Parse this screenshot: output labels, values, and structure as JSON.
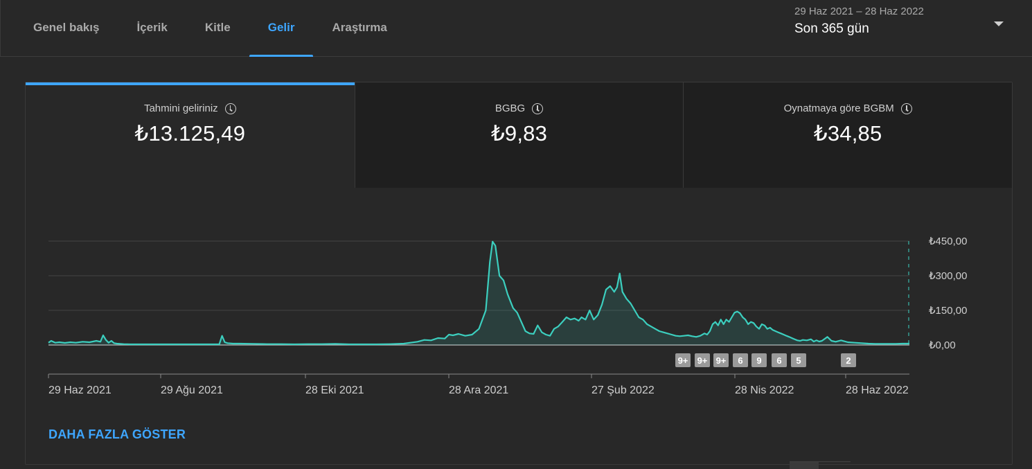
{
  "tabs": [
    {
      "label": "Genel bakış",
      "active": false
    },
    {
      "label": "İçerik",
      "active": false
    },
    {
      "label": "Kitle",
      "active": false
    },
    {
      "label": "Gelir",
      "active": true
    },
    {
      "label": "Araştırma",
      "active": false
    }
  ],
  "date_range": {
    "dates": "29 Haz 2021 – 28 Haz 2022",
    "label": "Son 365 gün"
  },
  "metrics": [
    {
      "label": "Tahmini geliriniz",
      "value": "₺13.125,49",
      "active": true
    },
    {
      "label": "BGBG",
      "value": "₺9,83",
      "active": false
    },
    {
      "label": "Oynatmaya göre BGBM",
      "value": "₺34,85",
      "active": false
    }
  ],
  "show_more_label": "DAHA FAZLA GÖSTER",
  "colors": {
    "accent": "#3ea6ff",
    "line": "#3ccfbf",
    "background": "#282828"
  },
  "chart_data": {
    "type": "area",
    "x_start": "2021-06-29",
    "x_end": "2022-06-28",
    "x_tick_labels": [
      "29 Haz 2021",
      "29 Ağu 2021",
      "28 Eki 2021",
      "28 Ara 2021",
      "27 Şub 2022",
      "28 Nis 2022",
      "28 Haz 2022"
    ],
    "y_tick_labels": [
      "₺0,00",
      "₺150,00",
      "₺300,00",
      "₺450,00"
    ],
    "ylim": [
      0,
      450
    ],
    "series": [
      {
        "values": [
          [
            0,
            10
          ],
          [
            2,
            18
          ],
          [
            5,
            10
          ],
          [
            8,
            12
          ],
          [
            12,
            9
          ],
          [
            16,
            12
          ],
          [
            20,
            10
          ],
          [
            25,
            14
          ],
          [
            30,
            12
          ],
          [
            35,
            18
          ],
          [
            38,
            14
          ],
          [
            40,
            42
          ],
          [
            42,
            22
          ],
          [
            44,
            10
          ],
          [
            46,
            18
          ],
          [
            48,
            8
          ],
          [
            50,
            6
          ],
          [
            55,
            4
          ],
          [
            60,
            3
          ],
          [
            70,
            3
          ],
          [
            80,
            3
          ],
          [
            90,
            3
          ],
          [
            100,
            3
          ],
          [
            110,
            3
          ],
          [
            120,
            3
          ],
          [
            125,
            3
          ],
          [
            127,
            40
          ],
          [
            129,
            12
          ],
          [
            131,
            8
          ],
          [
            135,
            6
          ],
          [
            140,
            6
          ],
          [
            150,
            5
          ],
          [
            160,
            4
          ],
          [
            170,
            4
          ],
          [
            180,
            3
          ],
          [
            190,
            4
          ],
          [
            200,
            4
          ],
          [
            210,
            5
          ],
          [
            220,
            3
          ],
          [
            230,
            3
          ],
          [
            240,
            3
          ],
          [
            250,
            4
          ],
          [
            260,
            6
          ],
          [
            270,
            14
          ],
          [
            275,
            22
          ],
          [
            280,
            20
          ],
          [
            285,
            30
          ],
          [
            290,
            28
          ],
          [
            293,
            45
          ],
          [
            296,
            42
          ],
          [
            300,
            48
          ],
          [
            305,
            40
          ],
          [
            310,
            45
          ],
          [
            315,
            70
          ],
          [
            320,
            150
          ],
          [
            323,
            360
          ],
          [
            325,
            448
          ],
          [
            327,
            430
          ],
          [
            330,
            300
          ],
          [
            333,
            280
          ],
          [
            336,
            220
          ],
          [
            340,
            160
          ],
          [
            343,
            140
          ],
          [
            346,
            100
          ],
          [
            349,
            60
          ],
          [
            352,
            50
          ],
          [
            355,
            48
          ],
          [
            358,
            85
          ],
          [
            361,
            55
          ],
          [
            364,
            45
          ],
          [
            367,
            40
          ],
          [
            370,
            70
          ],
          [
            373,
            80
          ],
          [
            376,
            100
          ],
          [
            379,
            120
          ],
          [
            382,
            110
          ],
          [
            385,
            115
          ],
          [
            388,
            105
          ],
          [
            390,
            120
          ],
          [
            393,
            110
          ],
          [
            396,
            150
          ],
          [
            399,
            110
          ],
          [
            402,
            130
          ],
          [
            405,
            175
          ],
          [
            408,
            240
          ],
          [
            411,
            255
          ],
          [
            414,
            230
          ],
          [
            416,
            250
          ],
          [
            418,
            310
          ],
          [
            420,
            230
          ],
          [
            423,
            200
          ],
          [
            426,
            180
          ],
          [
            429,
            150
          ],
          [
            432,
            120
          ],
          [
            435,
            110
          ],
          [
            438,
            90
          ],
          [
            441,
            80
          ],
          [
            444,
            70
          ],
          [
            447,
            60
          ],
          [
            450,
            55
          ],
          [
            453,
            50
          ],
          [
            456,
            45
          ],
          [
            459,
            40
          ],
          [
            462,
            38
          ],
          [
            465,
            40
          ],
          [
            468,
            42
          ],
          [
            471,
            38
          ],
          [
            474,
            35
          ],
          [
            477,
            40
          ],
          [
            480,
            50
          ],
          [
            482,
            45
          ],
          [
            484,
            60
          ],
          [
            486,
            90
          ],
          [
            488,
            100
          ],
          [
            490,
            85
          ],
          [
            492,
            110
          ],
          [
            494,
            90
          ],
          [
            496,
            110
          ],
          [
            498,
            100
          ],
          [
            500,
            120
          ],
          [
            502,
            140
          ],
          [
            504,
            145
          ],
          [
            506,
            138
          ],
          [
            508,
            120
          ],
          [
            510,
            110
          ],
          [
            512,
            90
          ],
          [
            514,
            100
          ],
          [
            516,
            95
          ],
          [
            518,
            80
          ],
          [
            520,
            70
          ],
          [
            522,
            90
          ],
          [
            524,
            85
          ],
          [
            526,
            70
          ],
          [
            528,
            75
          ],
          [
            530,
            65
          ],
          [
            532,
            60
          ],
          [
            534,
            55
          ],
          [
            536,
            50
          ],
          [
            538,
            45
          ],
          [
            540,
            40
          ],
          [
            542,
            35
          ],
          [
            544,
            30
          ],
          [
            546,
            25
          ],
          [
            548,
            20
          ],
          [
            550,
            18
          ],
          [
            552,
            22
          ],
          [
            555,
            20
          ],
          [
            558,
            25
          ],
          [
            560,
            15
          ],
          [
            562,
            20
          ],
          [
            564,
            15
          ],
          [
            566,
            18
          ],
          [
            570,
            35
          ],
          [
            573,
            18
          ],
          [
            576,
            14
          ],
          [
            580,
            20
          ],
          [
            585,
            12
          ],
          [
            590,
            10
          ],
          [
            595,
            8
          ],
          [
            600,
            6
          ],
          [
            605,
            5
          ],
          [
            610,
            5
          ],
          [
            615,
            5
          ],
          [
            620,
            5
          ],
          [
            625,
            6
          ],
          [
            630,
            6
          ]
        ]
      }
    ],
    "annotation_markers": [
      "9+",
      "9+",
      "9+",
      "6",
      "9",
      "6",
      "5",
      "2"
    ]
  }
}
